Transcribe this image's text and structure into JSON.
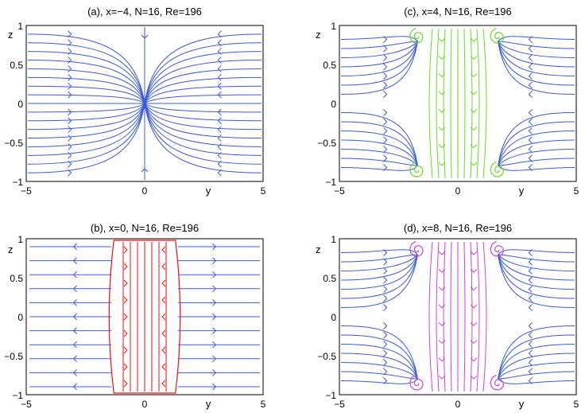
{
  "chart_data": [
    {
      "type": "streamplot",
      "title": "(a), x=−4, N=16, Re=196",
      "xlabel": "y",
      "ylabel": "z",
      "xlim": [
        -5,
        5
      ],
      "ylim": [
        -1,
        1
      ],
      "xticks": [
        "−5",
        "0",
        "5"
      ],
      "yticks": [
        "1",
        "0.5",
        "0",
        "−0.5",
        "−1"
      ],
      "flow": "sink",
      "colors": [
        "#3b5bdb"
      ]
    },
    {
      "type": "streamplot",
      "title": "(c), x=4, N=16, Re=196",
      "xlabel": "y",
      "ylabel": "z",
      "xlim": [
        -5,
        5
      ],
      "ylim": [
        -1,
        1
      ],
      "xticks": [
        "−5",
        "0",
        "5"
      ],
      "yticks": [
        "1",
        "0.5",
        "0",
        "−0.5",
        "−1"
      ],
      "flow": "vortex",
      "colors": [
        "#3b5bdb",
        "#66dd22"
      ]
    },
    {
      "type": "streamplot",
      "title": "(b), x=0, N=16, Re=196",
      "xlabel": "y",
      "ylabel": "z",
      "xlim": [
        -5,
        5
      ],
      "ylim": [
        -1,
        1
      ],
      "xticks": [
        "−5",
        "0",
        "5"
      ],
      "yticks": [
        "1",
        "0.5",
        "0",
        "−0.5",
        "−1"
      ],
      "flow": "inward",
      "colors": [
        "#3b5bdb",
        "#ee1111"
      ]
    },
    {
      "type": "streamplot",
      "title": "(d), x=8, N=16, Re=196",
      "xlabel": "y",
      "ylabel": "z",
      "xlim": [
        -5,
        5
      ],
      "ylim": [
        -1,
        1
      ],
      "xticks": [
        "−5",
        "0",
        "5"
      ],
      "yticks": [
        "1",
        "0.5",
        "0",
        "−0.5",
        "−1"
      ],
      "flow": "vortex",
      "colors": [
        "#3b5bdb",
        "#cc44dd"
      ]
    }
  ]
}
